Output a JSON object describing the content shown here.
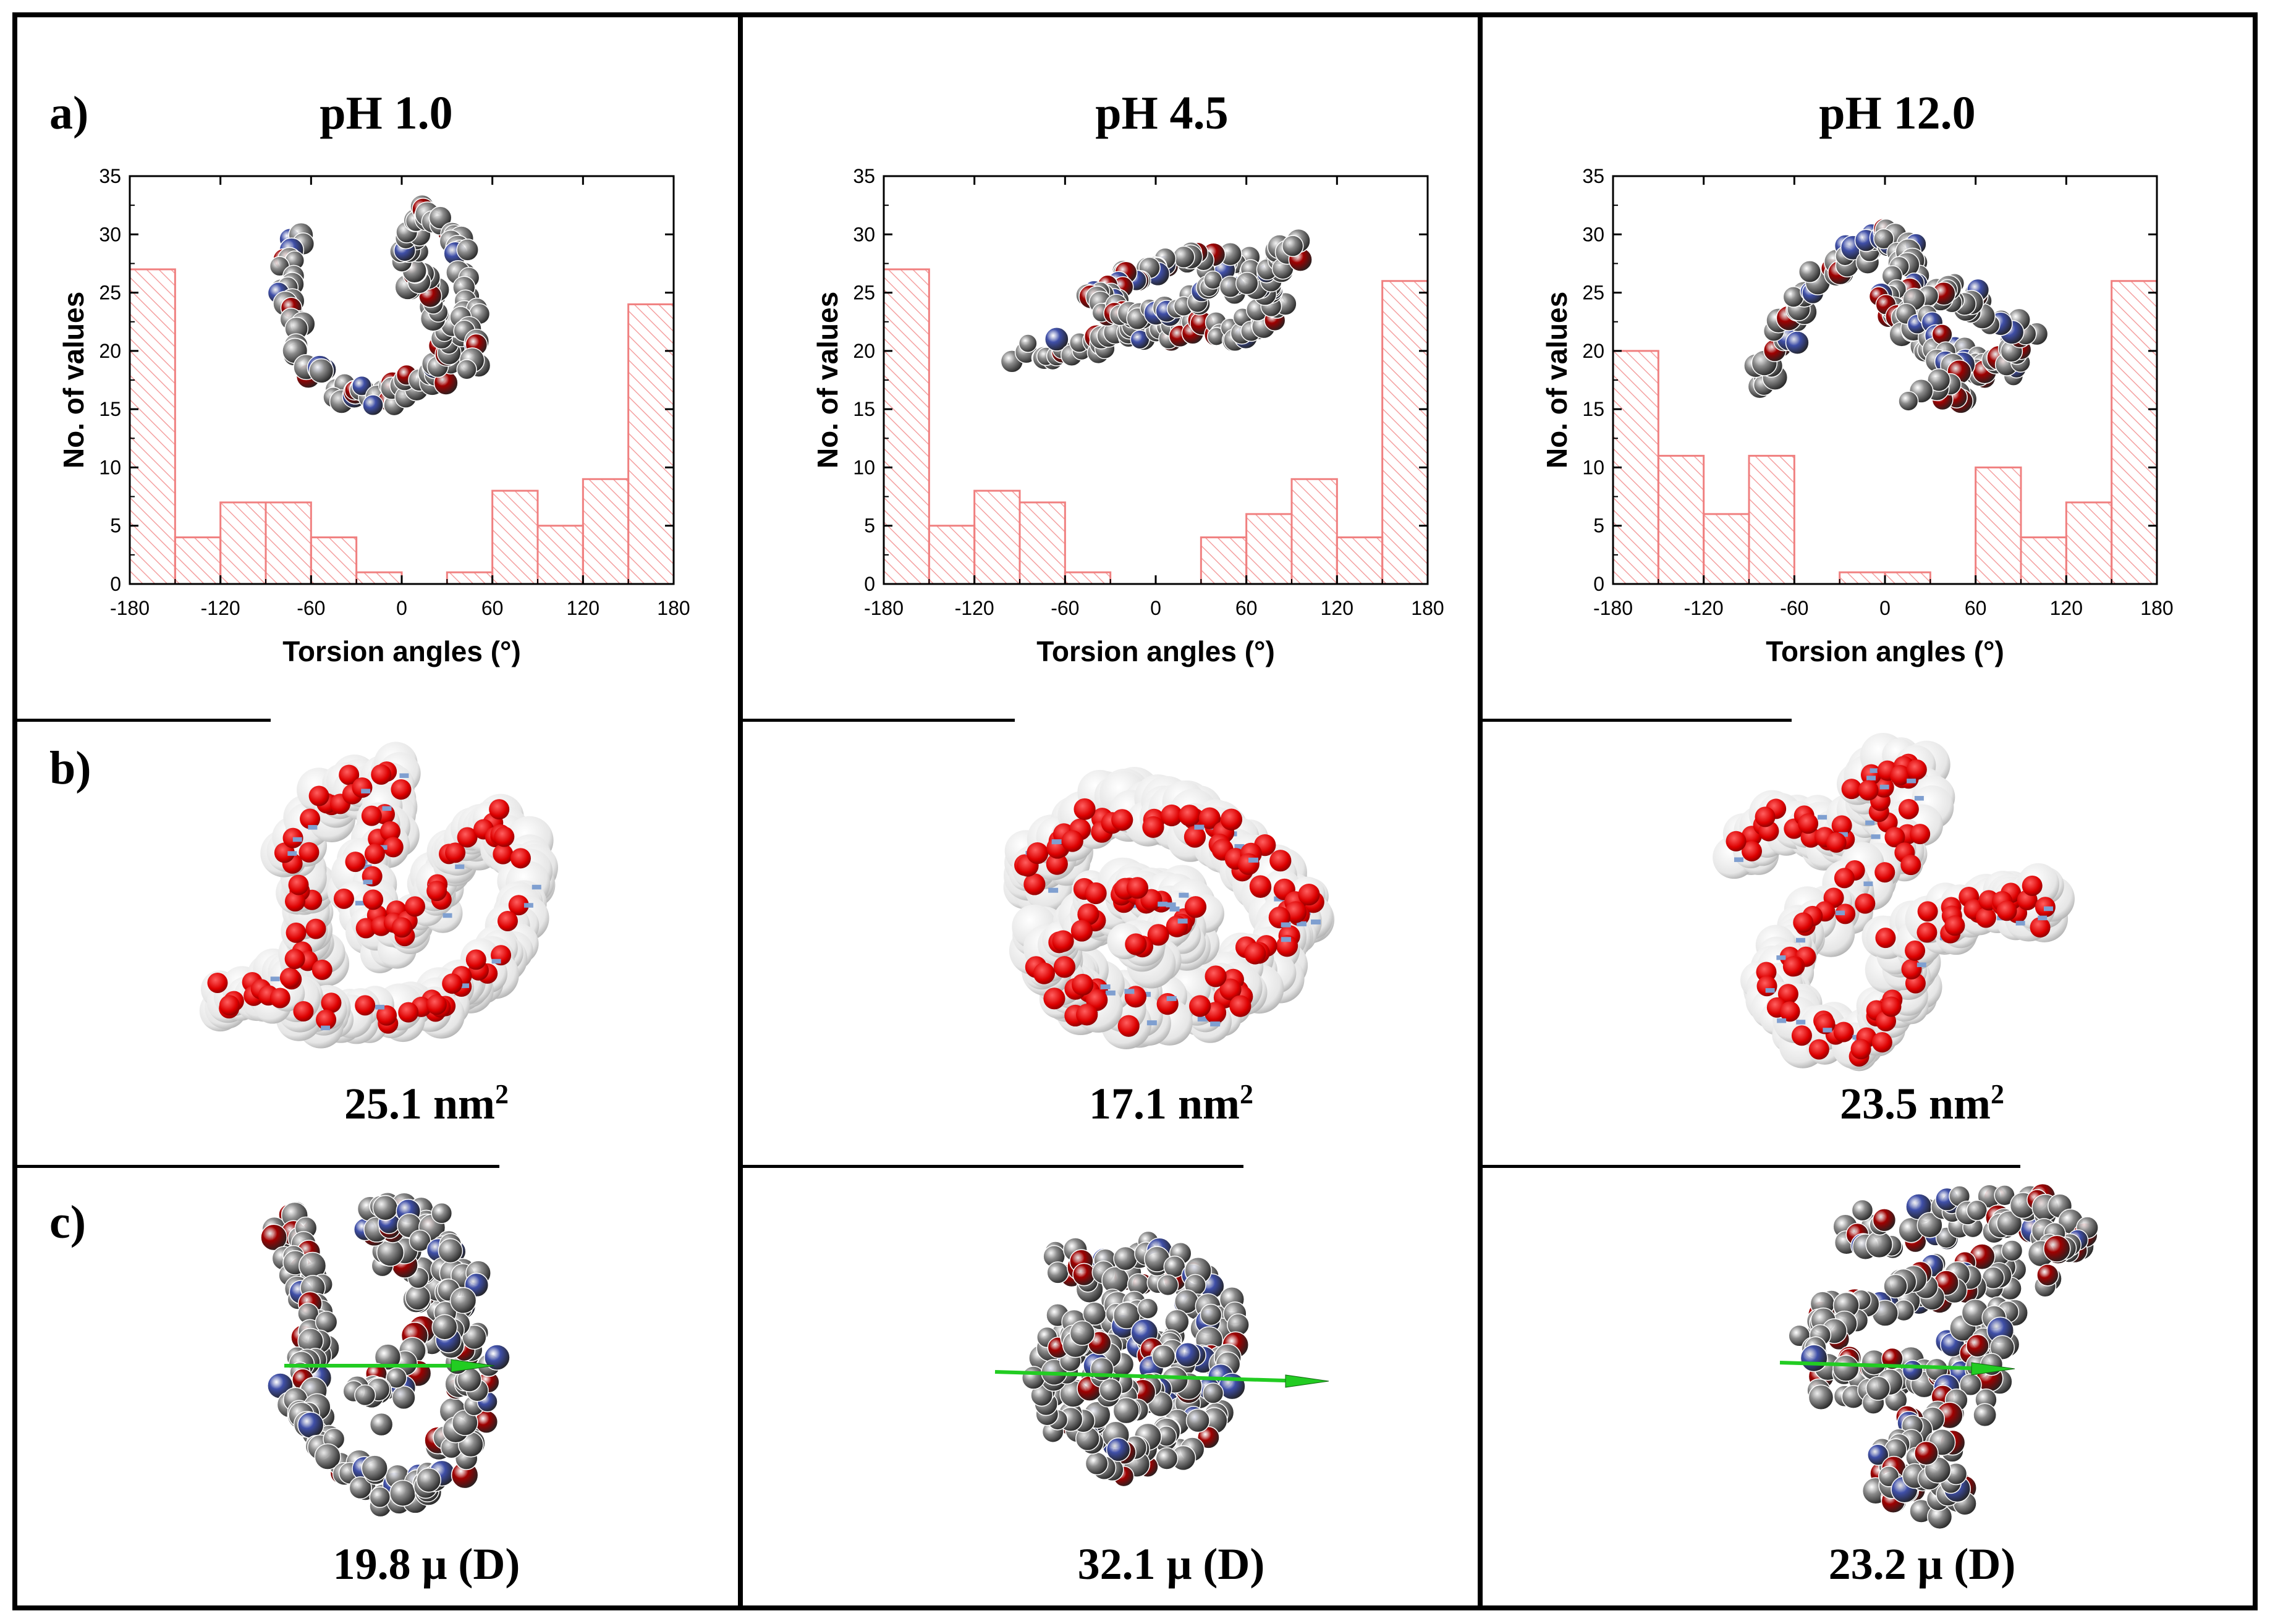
{
  "panel_labels": {
    "a": "a)",
    "b": "b)",
    "c": "c)"
  },
  "columns": [
    {
      "title": "pH 1.0",
      "area_value": "25.1 nm",
      "area_sup": "2",
      "dipole": "19.8 μ (D)"
    },
    {
      "title": "pH 4.5",
      "area_value": "17.1 nm",
      "area_sup": "2",
      "dipole": "32.1 μ (D)"
    },
    {
      "title": "pH 12.0",
      "area_value": "23.5 nm",
      "area_sup": "2",
      "dipole": "23.2 μ (D)"
    }
  ],
  "chart_data": [
    {
      "type": "bar",
      "title": "pH 1.0",
      "xlabel": "Torsion angles (°)",
      "ylabel": "No. of values",
      "xlim": [
        -180,
        180
      ],
      "ylim": [
        0,
        35
      ],
      "xticks": [
        -180,
        -120,
        -60,
        0,
        60,
        120,
        180
      ],
      "yticks": [
        0,
        5,
        10,
        15,
        20,
        25,
        30,
        35
      ],
      "bins": [
        [
          -180,
          -150
        ],
        [
          -150,
          -120
        ],
        [
          -120,
          -90
        ],
        [
          -90,
          -60
        ],
        [
          -60,
          -30
        ],
        [
          -30,
          0
        ],
        [
          0,
          30
        ],
        [
          30,
          60
        ],
        [
          60,
          90
        ],
        [
          90,
          120
        ],
        [
          120,
          150
        ],
        [
          150,
          180
        ]
      ],
      "values": [
        27,
        4,
        7,
        7,
        4,
        1,
        0,
        1,
        8,
        5,
        9,
        24
      ]
    },
    {
      "type": "bar",
      "title": "pH 4.5",
      "xlabel": "Torsion angles (°)",
      "ylabel": "No. of values",
      "xlim": [
        -180,
        180
      ],
      "ylim": [
        0,
        35
      ],
      "xticks": [
        -180,
        -120,
        -60,
        0,
        60,
        120,
        180
      ],
      "yticks": [
        0,
        5,
        10,
        15,
        20,
        25,
        30,
        35
      ],
      "bins": [
        [
          -180,
          -150
        ],
        [
          -150,
          -120
        ],
        [
          -120,
          -90
        ],
        [
          -90,
          -60
        ],
        [
          -60,
          -30
        ],
        [
          -30,
          0
        ],
        [
          0,
          30
        ],
        [
          30,
          60
        ],
        [
          60,
          90
        ],
        [
          90,
          120
        ],
        [
          120,
          150
        ],
        [
          150,
          180
        ]
      ],
      "values": [
        27,
        5,
        8,
        7,
        1,
        0,
        0,
        4,
        6,
        9,
        4,
        26
      ]
    },
    {
      "type": "bar",
      "title": "pH 12.0",
      "xlabel": "Torsion angles (°)",
      "ylabel": "No. of values",
      "xlim": [
        -180,
        180
      ],
      "ylim": [
        0,
        35
      ],
      "xticks": [
        -180,
        -120,
        -60,
        0,
        60,
        120,
        180
      ],
      "yticks": [
        0,
        5,
        10,
        15,
        20,
        25,
        30,
        35
      ],
      "bins": [
        [
          -180,
          -150
        ],
        [
          -150,
          -120
        ],
        [
          -120,
          -90
        ],
        [
          -90,
          -60
        ],
        [
          -60,
          -30
        ],
        [
          -30,
          0
        ],
        [
          0,
          30
        ],
        [
          30,
          60
        ],
        [
          60,
          90
        ],
        [
          90,
          120
        ],
        [
          120,
          150
        ],
        [
          150,
          180
        ]
      ],
      "values": [
        20,
        11,
        6,
        11,
        0,
        1,
        1,
        0,
        10,
        4,
        7,
        26
      ]
    }
  ],
  "colors": {
    "bar_stroke": "#f08080",
    "hatch": "#f4a0a0",
    "carbon": "#8c8c8c",
    "nitrogen": "#3f4fa8",
    "oxygen": "#a00000",
    "surface": "#e6e6e6",
    "surface_oxygen": "#dd0000",
    "surface_nitrogen": "#7f9fd0",
    "dipole_arrow": "#22cc22"
  }
}
